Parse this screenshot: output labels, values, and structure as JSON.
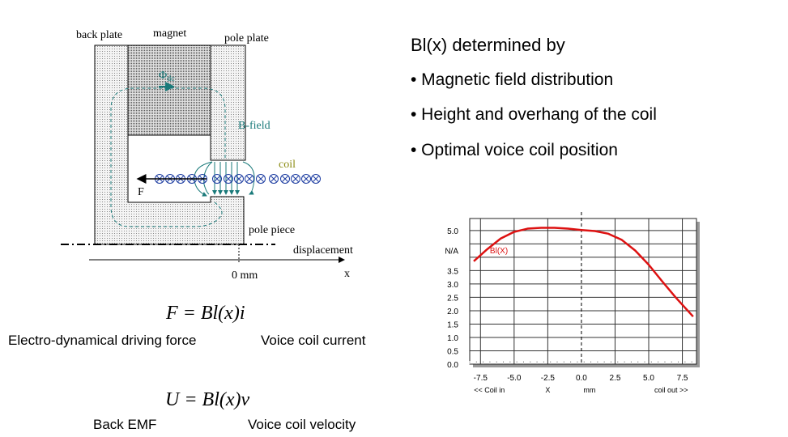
{
  "diagram": {
    "labels": {
      "back_plate": "back plate",
      "magnet": "magnet",
      "pole_plate": "pole plate",
      "phi": "Φ",
      "phi_sub": "dc",
      "b_field": "B-field",
      "coil": "coil",
      "force": "F",
      "pole_piece": "pole piece",
      "displacement": "displacement",
      "zero": "0 mm",
      "x": "x"
    },
    "colors": {
      "field": "#1a7a7a",
      "coil": "#1a3aa0",
      "coil_label": "#8a8a10"
    }
  },
  "title": "Bl(x) determined by",
  "bullets": [
    "• Magnetic field distribution",
    "• Height and overhang of the coil",
    "• Optimal voice coil position"
  ],
  "equations": {
    "force": "F = Bl(x)i",
    "force_left": "Electro-dynamical driving force",
    "force_right": "Voice coil current",
    "voltage": "U = Bl(x)v",
    "voltage_left": "Back EMF",
    "voltage_right": "Voice coil velocity"
  },
  "chart_data": {
    "type": "line",
    "series": [
      {
        "name": "Bl(X)",
        "color": "#dd1111",
        "x": [
          -8.0,
          -7.0,
          -6.0,
          -5.0,
          -4.0,
          -3.0,
          -2.0,
          -1.0,
          0.0,
          1.0,
          2.0,
          3.0,
          4.0,
          5.0,
          6.0,
          7.0,
          8.3
        ],
        "y": [
          3.85,
          4.3,
          4.7,
          4.95,
          5.07,
          5.1,
          5.1,
          5.07,
          5.02,
          4.98,
          4.88,
          4.65,
          4.25,
          3.72,
          3.1,
          2.5,
          1.78
        ]
      }
    ],
    "xlim": [
      -8.3,
      8.55
    ],
    "ylim": [
      0,
      5.45
    ],
    "xticks": [
      "-7.5",
      "-5.0",
      "-2.5",
      "0.0",
      "2.5",
      "5.0",
      "7.5"
    ],
    "xtick_values": [
      -7.5,
      -5.0,
      -2.5,
      0.0,
      2.5,
      5.0,
      7.5
    ],
    "yticks": [
      "0.0",
      "0.5",
      "1.0",
      "1.5",
      "2.0",
      "2.5",
      "3.0",
      "3.5",
      "N/A",
      "5.0"
    ],
    "ytick_values": [
      0,
      0.5,
      1.0,
      1.5,
      2.0,
      2.5,
      3.0,
      3.5,
      4.25,
      5.0
    ],
    "xlabel_parts": [
      "<< Coil in",
      "X",
      "mm",
      "coil out >>"
    ],
    "grid": true,
    "reference_line_x": 0.0
  }
}
